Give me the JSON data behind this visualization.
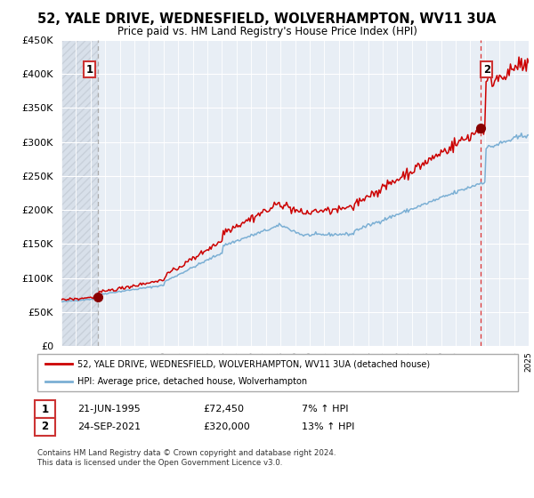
{
  "title": "52, YALE DRIVE, WEDNESFIELD, WOLVERHAMPTON, WV11 3UA",
  "subtitle": "Price paid vs. HM Land Registry's House Price Index (HPI)",
  "ylim": [
    0,
    450000
  ],
  "yticks": [
    0,
    50000,
    100000,
    150000,
    200000,
    250000,
    300000,
    350000,
    400000,
    450000
  ],
  "x_start_year": 1993,
  "x_end_year": 2025,
  "sale1_date": "21-JUN-1995",
  "sale1_price": 72450,
  "sale1_x": 1995.47,
  "sale1_label": "7% ↑ HPI",
  "sale2_date": "24-SEP-2021",
  "sale2_price": 320000,
  "sale2_x": 2021.73,
  "sale2_label": "13% ↑ HPI",
  "legend_line1": "52, YALE DRIVE, WEDNESFIELD, WOLVERHAMPTON, WV11 3UA (detached house)",
  "legend_line2": "HPI: Average price, detached house, Wolverhampton",
  "line_color": "#cc0000",
  "hpi_color": "#7bafd4",
  "plot_bg": "#e8eef5",
  "footer": "Contains HM Land Registry data © Crown copyright and database right 2024.\nThis data is licensed under the Open Government Licence v3.0.",
  "marker_color": "#880000",
  "vline1_color": "#aaaaaa",
  "vline2_color": "#dd3333",
  "grid_color": "#ffffff",
  "hatch_bg": "#d8e0ea"
}
